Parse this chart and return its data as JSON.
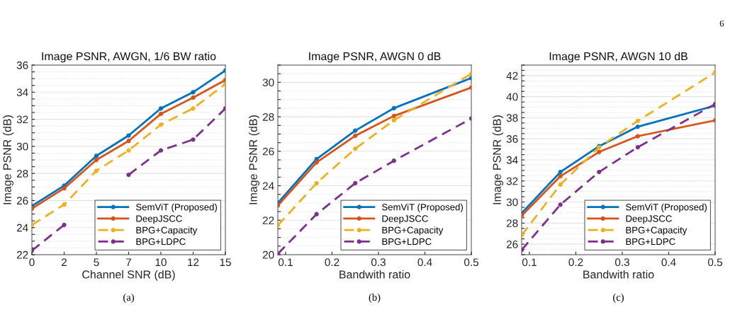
{
  "chart_data": [
    {
      "type": "line",
      "title": "Image PSNR, AWGN, 1/6 BW ratio",
      "xlabel": "Channel SNR (dB)",
      "ylabel": "Image PSNR (dB)",
      "categories": [
        "0",
        "2",
        "5",
        "7",
        "10",
        "12",
        "15"
      ],
      "series": [
        {
          "name": "SemViT (Proposed)",
          "color": "#0072bd",
          "line_style": "solid",
          "values": [
            25.6,
            27.1,
            29.3,
            30.8,
            32.8,
            34.0,
            35.6
          ]
        },
        {
          "name": "DeepJSCC",
          "color": "#d95319",
          "line_style": "solid",
          "values": [
            25.4,
            26.9,
            29.0,
            30.4,
            32.4,
            33.6,
            34.9
          ]
        },
        {
          "name": "BPG+Capacity",
          "color": "#edb120",
          "line_style": "dashed",
          "values": [
            24.2,
            25.7,
            28.2,
            29.7,
            31.6,
            32.8,
            34.6
          ]
        },
        {
          "name": "BPG+LDPC",
          "color": "#7e2f8e",
          "line_style": "dashed",
          "values": [
            22.3,
            24.2,
            null,
            27.9,
            29.7,
            30.5,
            32.8
          ]
        }
      ],
      "ylim": [
        22,
        36
      ],
      "yticks": [
        22,
        {
          "value": 22.5,
          "label": null
        },
        {
          "value": 23,
          "label": null
        },
        {
          "value": 23.5,
          "label": null
        },
        24,
        {
          "value": 24.5,
          "label": null
        },
        {
          "value": 25,
          "label": null
        },
        {
          "value": 25.5,
          "label": null
        },
        26,
        {
          "value": 26.5,
          "label": null
        },
        {
          "value": 27,
          "label": null
        },
        {
          "value": 27.5,
          "label": null
        },
        28,
        {
          "value": 28.5,
          "label": null
        },
        {
          "value": 29,
          "label": null
        },
        {
          "value": 29.5,
          "label": null
        },
        30,
        {
          "value": 30.5,
          "label": null
        },
        {
          "value": 31,
          "label": null
        },
        {
          "value": 31.5,
          "label": null
        },
        32,
        {
          "value": 32.5,
          "label": null
        },
        {
          "value": 33,
          "label": null
        },
        {
          "value": 33.5,
          "label": null
        },
        34,
        {
          "value": 34.5,
          "label": null
        },
        {
          "value": 35,
          "label": null
        },
        {
          "value": 35.5,
          "label": null
        },
        36
      ],
      "grid": "y",
      "legend": "bottom right",
      "marker": "circle",
      "annotations": [
        "(a)"
      ]
    },
    {
      "type": "line",
      "title": "Image PSNR, AWGN 0 dB",
      "xlabel": "Bandwith ratio",
      "ylabel": "Image PSNR (dB)",
      "x": [
        0.0833,
        0.1667,
        0.25,
        0.3333,
        0.5
      ],
      "series": [
        {
          "name": "SemViT (Proposed)",
          "color": "#0072bd",
          "line_style": "solid",
          "values": [
            23.0,
            25.55,
            27.2,
            28.5,
            30.25
          ]
        },
        {
          "name": "DeepJSCC",
          "color": "#d95319",
          "line_style": "solid",
          "values": [
            22.85,
            25.35,
            26.9,
            28.05,
            29.7
          ]
        },
        {
          "name": "BPG+Capacity",
          "color": "#edb120",
          "line_style": "dashed",
          "values": [
            21.7,
            24.15,
            26.15,
            27.8,
            30.5
          ]
        },
        {
          "name": "BPG+LDPC",
          "color": "#7e2f8e",
          "line_style": "dashed",
          "values": [
            20.05,
            22.35,
            24.15,
            25.45,
            27.9
          ]
        }
      ],
      "xlim": [
        0.0833,
        0.5
      ],
      "xticks": [
        0.1,
        0.2,
        0.3,
        0.4,
        0.5
      ],
      "ylim": [
        20,
        31
      ],
      "yticks": [
        20,
        {
          "value": 20.5,
          "label": null
        },
        {
          "value": 21,
          "label": null
        },
        {
          "value": 21.5,
          "label": null
        },
        22,
        {
          "value": 22.5,
          "label": null
        },
        {
          "value": 23,
          "label": null
        },
        {
          "value": 23.5,
          "label": null
        },
        24,
        {
          "value": 24.5,
          "label": null
        },
        {
          "value": 25,
          "label": null
        },
        {
          "value": 25.5,
          "label": null
        },
        26,
        {
          "value": 26.5,
          "label": null
        },
        {
          "value": 27,
          "label": null
        },
        {
          "value": 27.5,
          "label": null
        },
        28,
        {
          "value": 28.5,
          "label": null
        },
        {
          "value": 29,
          "label": null
        },
        {
          "value": 29.5,
          "label": null
        },
        30,
        {
          "value": 30.5,
          "label": null
        },
        {
          "value": 31,
          "label": null
        }
      ],
      "grid": "y",
      "legend": "bottom right",
      "marker": "circle",
      "annotations": [
        "(b)"
      ]
    },
    {
      "type": "line",
      "title": "Image PSNR, AWGN 10 dB",
      "xlabel": "Bandwith ratio",
      "ylabel": "Image PSNR (dB)",
      "x": [
        0.0833,
        0.1667,
        0.25,
        0.3333,
        0.5
      ],
      "series": [
        {
          "name": "SemViT (Proposed)",
          "color": "#0072bd",
          "line_style": "solid",
          "values": [
            28.95,
            32.85,
            35.3,
            37.15,
            39.15
          ]
        },
        {
          "name": "DeepJSCC",
          "color": "#d95319",
          "line_style": "solid",
          "values": [
            28.7,
            32.45,
            34.75,
            36.25,
            37.75
          ]
        },
        {
          "name": "BPG+Capacity",
          "color": "#edb120",
          "line_style": "dashed",
          "values": [
            26.85,
            31.65,
            35.2,
            37.7,
            42.3
          ]
        },
        {
          "name": "BPG+LDPC",
          "color": "#7e2f8e",
          "line_style": "dashed",
          "values": [
            25.45,
            29.75,
            32.85,
            35.2,
            39.3
          ]
        }
      ],
      "xlim": [
        0.0833,
        0.5
      ],
      "xticks": [
        0.1,
        0.2,
        0.3,
        0.4,
        0.5
      ],
      "ylim": [
        25,
        43
      ],
      "yticks": [
        {
          "value": 25,
          "label": null
        },
        {
          "value": 25.5,
          "label": null
        },
        26,
        {
          "value": 26.5,
          "label": null
        },
        {
          "value": 27,
          "label": null
        },
        {
          "value": 27.5,
          "label": null
        },
        28,
        {
          "value": 28.5,
          "label": null
        },
        {
          "value": 29,
          "label": null
        },
        {
          "value": 29.5,
          "label": null
        },
        30,
        {
          "value": 30.5,
          "label": null
        },
        {
          "value": 31,
          "label": null
        },
        {
          "value": 31.5,
          "label": null
        },
        32,
        {
          "value": 32.5,
          "label": null
        },
        {
          "value": 33,
          "label": null
        },
        {
          "value": 33.5,
          "label": null
        },
        34,
        {
          "value": 34.5,
          "label": null
        },
        {
          "value": 35,
          "label": null
        },
        {
          "value": 35.5,
          "label": null
        },
        36,
        {
          "value": 36.5,
          "label": null
        },
        {
          "value": 37,
          "label": null
        },
        {
          "value": 37.5,
          "label": null
        },
        38,
        {
          "value": 38.5,
          "label": null
        },
        {
          "value": 39,
          "label": null
        },
        {
          "value": 39.5,
          "label": null
        },
        40,
        {
          "value": 40.5,
          "label": null
        },
        {
          "value": 41,
          "label": null
        },
        {
          "value": 41.5,
          "label": null
        },
        42,
        {
          "value": 42.5,
          "label": null
        },
        {
          "value": 43,
          "label": null
        }
      ],
      "grid": "y",
      "legend": "bottom right",
      "marker": "circle",
      "annotations": [
        "(c)",
        "6"
      ]
    }
  ]
}
